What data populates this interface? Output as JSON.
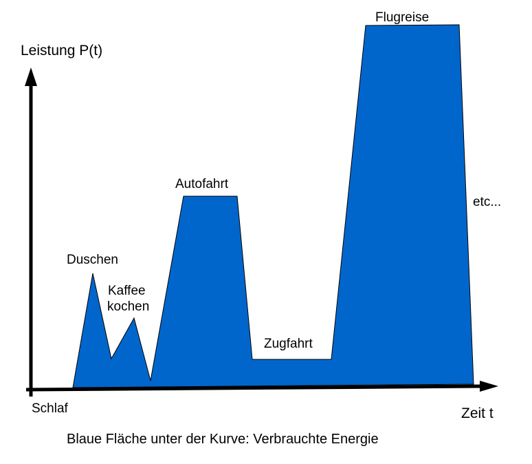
{
  "axes": {
    "y_label": "Leistung P(t)",
    "x_label": "Zeit t",
    "origin_label": "Schlaf"
  },
  "activities": {
    "duschen": "Duschen",
    "kaffee_line1": "Kaffee",
    "kaffee_line2": "kochen",
    "autofahrt": "Autofahrt",
    "zugfahrt": "Zugfahrt",
    "flugreise": "Flugreise",
    "etc": "etc..."
  },
  "caption": "Blaue Fläche unter der Kurve: Verbrauchte Energie",
  "colors": {
    "area_fill": "#0066cc",
    "axis": "#000000"
  }
}
